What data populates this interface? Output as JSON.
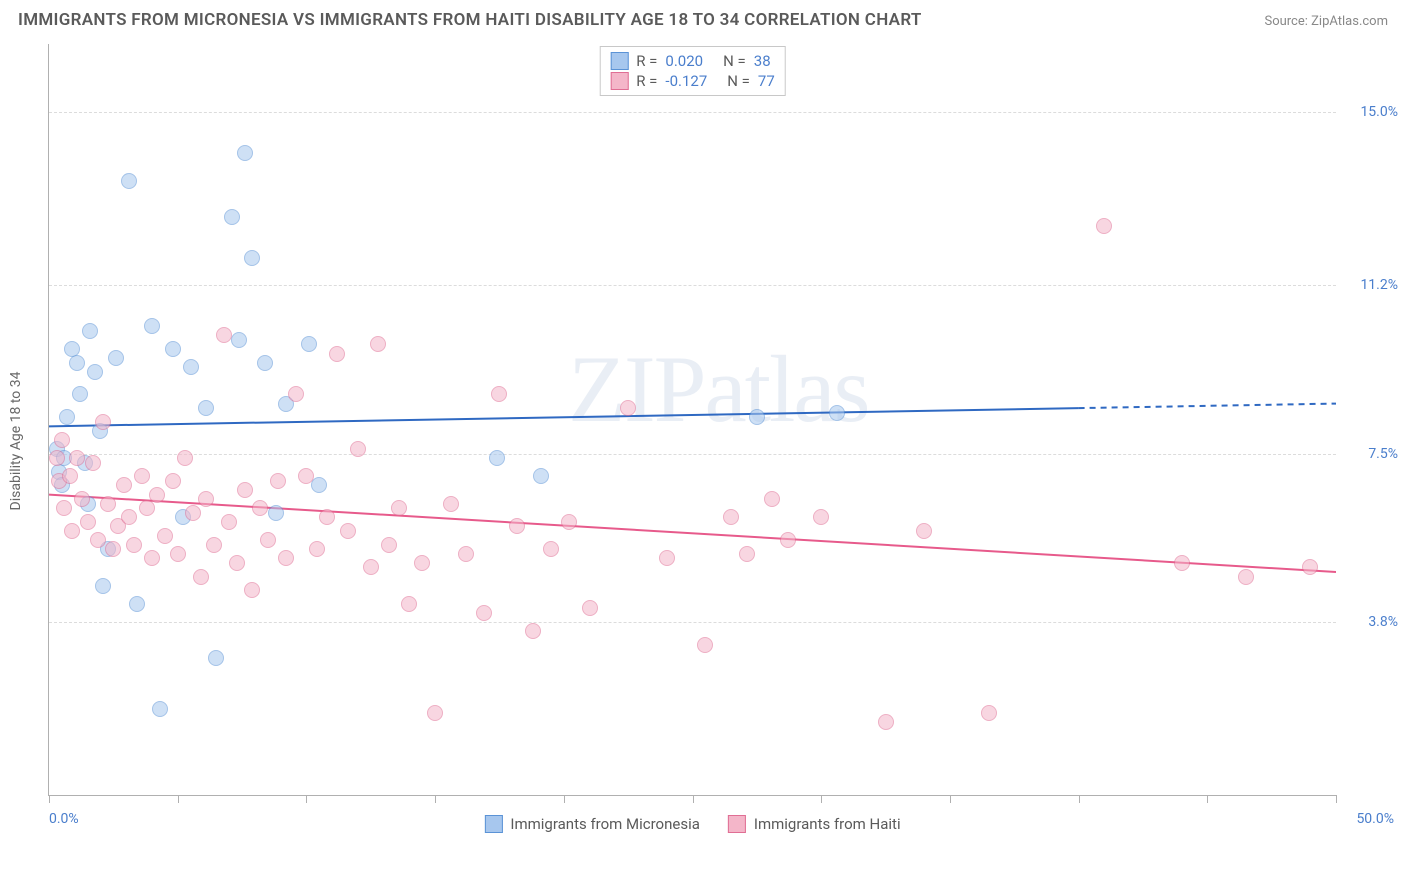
{
  "header": {
    "title": "IMMIGRANTS FROM MICRONESIA VS IMMIGRANTS FROM HAITI DISABILITY AGE 18 TO 34 CORRELATION CHART",
    "source": "Source: ZipAtlas.com"
  },
  "chart": {
    "type": "scatter",
    "watermark": "ZIPatlas",
    "y_axis_label": "Disability Age 18 to 34",
    "background_color": "#ffffff",
    "grid_color": "#dcdcdc",
    "axis_color": "#b0b0b0",
    "xlim": [
      0,
      50
    ],
    "ylim": [
      0,
      16.5
    ],
    "x_ticks": [
      0,
      5,
      10,
      15,
      20,
      25,
      30,
      35,
      40,
      45,
      50
    ],
    "x_tick_labels": {
      "start": "0.0%",
      "end": "50.0%"
    },
    "y_ticks": [
      3.8,
      7.5,
      11.2,
      15.0
    ],
    "y_tick_labels": [
      "3.8%",
      "7.5%",
      "11.2%",
      "15.0%"
    ],
    "marker_radius": 8,
    "marker_opacity": 0.55,
    "label_fontsize": 14,
    "label_color": "#4a7ecc",
    "title_fontsize": 17,
    "series": [
      {
        "name": "Immigrants from Micronesia",
        "fill_color": "#a7c7ee",
        "stroke_color": "#5b93d6",
        "stat_R": "0.020",
        "stat_N": "38",
        "trend": {
          "y_start": 8.1,
          "solid_end_x": 40,
          "solid_end_y": 8.5,
          "dash_end_x": 50,
          "dash_end_y": 8.6,
          "line_color": "#2f69c2",
          "line_width": 2
        },
        "points": [
          [
            0.3,
            7.6
          ],
          [
            0.4,
            7.1
          ],
          [
            0.5,
            6.8
          ],
          [
            0.6,
            7.4
          ],
          [
            0.7,
            8.3
          ],
          [
            0.9,
            9.8
          ],
          [
            1.1,
            9.5
          ],
          [
            1.2,
            8.8
          ],
          [
            1.4,
            7.3
          ],
          [
            1.5,
            6.4
          ],
          [
            1.6,
            10.2
          ],
          [
            1.8,
            9.3
          ],
          [
            2.0,
            8.0
          ],
          [
            2.1,
            4.6
          ],
          [
            2.3,
            5.4
          ],
          [
            2.6,
            9.6
          ],
          [
            3.1,
            13.5
          ],
          [
            3.4,
            4.2
          ],
          [
            4.0,
            10.3
          ],
          [
            4.3,
            1.9
          ],
          [
            4.8,
            9.8
          ],
          [
            5.2,
            6.1
          ],
          [
            5.5,
            9.4
          ],
          [
            6.1,
            8.5
          ],
          [
            6.5,
            3.0
          ],
          [
            7.1,
            12.7
          ],
          [
            7.4,
            10.0
          ],
          [
            7.6,
            14.1
          ],
          [
            7.9,
            11.8
          ],
          [
            8.4,
            9.5
          ],
          [
            8.8,
            6.2
          ],
          [
            9.2,
            8.6
          ],
          [
            10.1,
            9.9
          ],
          [
            10.5,
            6.8
          ],
          [
            17.4,
            7.4
          ],
          [
            19.1,
            7.0
          ],
          [
            27.5,
            8.3
          ],
          [
            30.6,
            8.4
          ]
        ]
      },
      {
        "name": "Immigrants from Haiti",
        "fill_color": "#f4b6c9",
        "stroke_color": "#e06e94",
        "stat_R": "-0.127",
        "stat_N": "77",
        "trend": {
          "y_start": 6.6,
          "solid_end_x": 50,
          "solid_end_y": 4.9,
          "line_color": "#e75a8b",
          "line_width": 2
        },
        "points": [
          [
            0.3,
            7.4
          ],
          [
            0.4,
            6.9
          ],
          [
            0.5,
            7.8
          ],
          [
            0.6,
            6.3
          ],
          [
            0.8,
            7.0
          ],
          [
            0.9,
            5.8
          ],
          [
            1.1,
            7.4
          ],
          [
            1.3,
            6.5
          ],
          [
            1.5,
            6.0
          ],
          [
            1.7,
            7.3
          ],
          [
            1.9,
            5.6
          ],
          [
            2.1,
            8.2
          ],
          [
            2.3,
            6.4
          ],
          [
            2.5,
            5.4
          ],
          [
            2.7,
            5.9
          ],
          [
            2.9,
            6.8
          ],
          [
            3.1,
            6.1
          ],
          [
            3.3,
            5.5
          ],
          [
            3.6,
            7.0
          ],
          [
            3.8,
            6.3
          ],
          [
            4.0,
            5.2
          ],
          [
            4.2,
            6.6
          ],
          [
            4.5,
            5.7
          ],
          [
            4.8,
            6.9
          ],
          [
            5.0,
            5.3
          ],
          [
            5.3,
            7.4
          ],
          [
            5.6,
            6.2
          ],
          [
            5.9,
            4.8
          ],
          [
            6.1,
            6.5
          ],
          [
            6.4,
            5.5
          ],
          [
            6.8,
            10.1
          ],
          [
            7.0,
            6.0
          ],
          [
            7.3,
            5.1
          ],
          [
            7.6,
            6.7
          ],
          [
            7.9,
            4.5
          ],
          [
            8.2,
            6.3
          ],
          [
            8.5,
            5.6
          ],
          [
            8.9,
            6.9
          ],
          [
            9.2,
            5.2
          ],
          [
            9.6,
            8.8
          ],
          [
            10.0,
            7.0
          ],
          [
            10.4,
            5.4
          ],
          [
            10.8,
            6.1
          ],
          [
            11.2,
            9.7
          ],
          [
            11.6,
            5.8
          ],
          [
            12.0,
            7.6
          ],
          [
            12.5,
            5.0
          ],
          [
            12.8,
            9.9
          ],
          [
            13.2,
            5.5
          ],
          [
            13.6,
            6.3
          ],
          [
            14.0,
            4.2
          ],
          [
            14.5,
            5.1
          ],
          [
            15.0,
            1.8
          ],
          [
            15.6,
            6.4
          ],
          [
            16.2,
            5.3
          ],
          [
            16.9,
            4.0
          ],
          [
            17.5,
            8.8
          ],
          [
            18.2,
            5.9
          ],
          [
            18.8,
            3.6
          ],
          [
            19.5,
            5.4
          ],
          [
            20.2,
            6.0
          ],
          [
            21.0,
            4.1
          ],
          [
            22.5,
            8.5
          ],
          [
            24.0,
            5.2
          ],
          [
            25.5,
            3.3
          ],
          [
            26.5,
            6.1
          ],
          [
            27.1,
            5.3
          ],
          [
            28.1,
            6.5
          ],
          [
            28.7,
            5.6
          ],
          [
            30.0,
            6.1
          ],
          [
            32.5,
            1.6
          ],
          [
            34.0,
            5.8
          ],
          [
            36.5,
            1.8
          ],
          [
            41.0,
            12.5
          ],
          [
            44.0,
            5.1
          ],
          [
            46.5,
            4.8
          ],
          [
            49.0,
            5.0
          ]
        ]
      }
    ],
    "bottom_legend": [
      {
        "label": "Immigrants from Micronesia",
        "fill": "#a7c7ee",
        "stroke": "#5b93d6"
      },
      {
        "label": "Immigrants from Haiti",
        "fill": "#f4b6c9",
        "stroke": "#e06e94"
      }
    ]
  }
}
